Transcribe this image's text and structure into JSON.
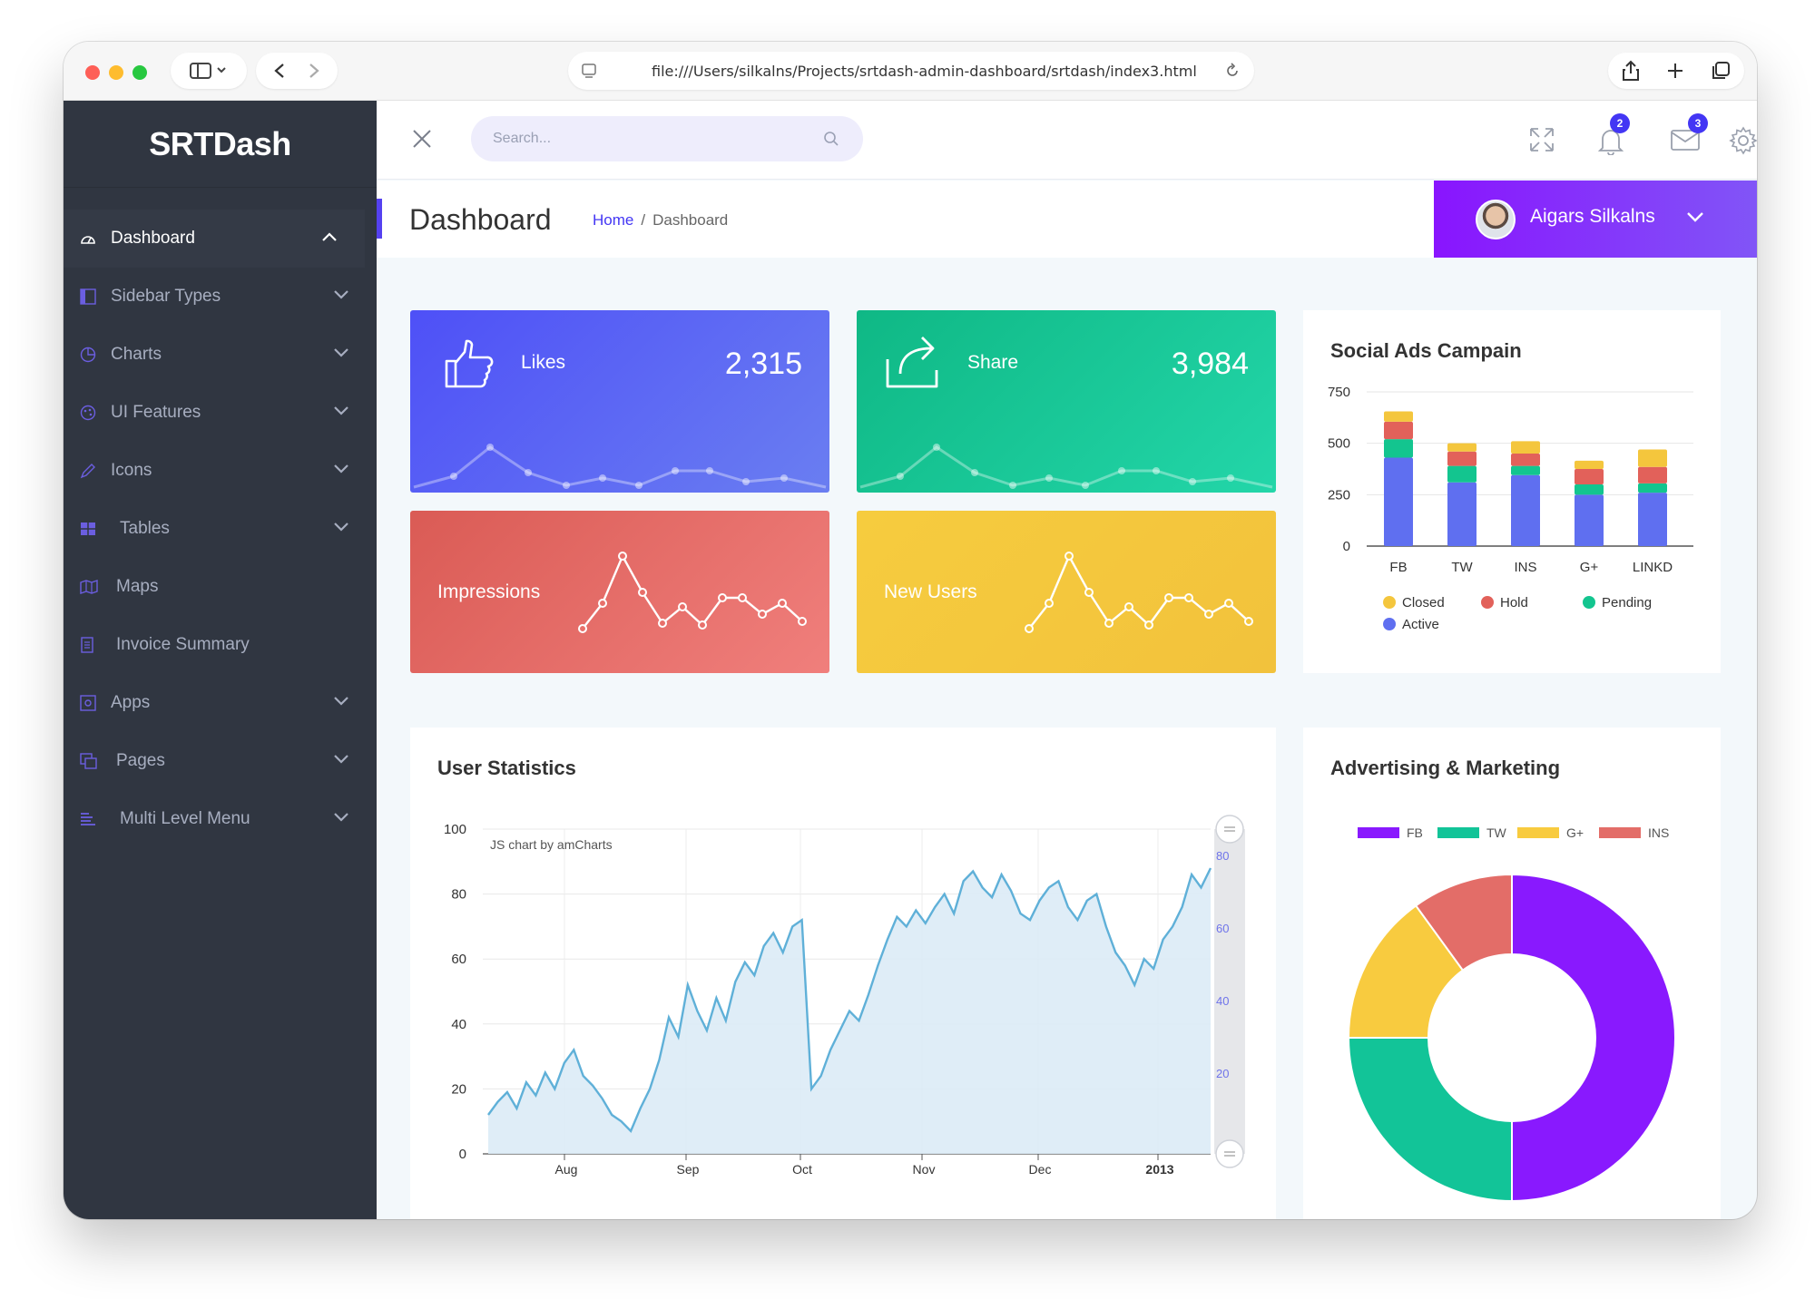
{
  "browser": {
    "url": "file:///Users/silkalns/Projects/srtdash-admin-dashboard/srtdash/index3.html"
  },
  "brand": "SRTDash",
  "sidebar": {
    "items": [
      {
        "label": "Dashboard",
        "icon": "dashboard-icon",
        "expandable": true,
        "active": true
      },
      {
        "label": "Sidebar Types",
        "icon": "layout-icon",
        "expandable": true
      },
      {
        "label": "Charts",
        "icon": "pie-chart-icon",
        "expandable": true
      },
      {
        "label": "UI Features",
        "icon": "palette-icon",
        "expandable": true
      },
      {
        "label": "Icons",
        "icon": "pencil-icon",
        "expandable": true
      },
      {
        "label": "Tables",
        "icon": "table-icon",
        "expandable": true
      },
      {
        "label": "Maps",
        "icon": "map-icon",
        "expandable": false
      },
      {
        "label": "Invoice Summary",
        "icon": "receipt-icon",
        "expandable": false
      },
      {
        "label": "Apps",
        "icon": "app-icon",
        "expandable": true
      },
      {
        "label": "Pages",
        "icon": "copy-icon",
        "expandable": true
      },
      {
        "label": "Multi Level Menu",
        "icon": "list-icon",
        "expandable": true
      }
    ]
  },
  "header": {
    "search_placeholder": "Search...",
    "notifications_count": "2",
    "messages_count": "3"
  },
  "page": {
    "title": "Dashboard",
    "breadcrumb_home": "Home",
    "breadcrumb_current": "Dashboard",
    "user_name": "Aigars Silkalns"
  },
  "stats": {
    "likes": {
      "label": "Likes",
      "value": "2,315"
    },
    "share": {
      "label": "Share",
      "value": "3,984"
    },
    "impressions": {
      "label": "Impressions"
    },
    "new_users": {
      "label": "New Users"
    }
  },
  "colors": {
    "sidebar": "#303641",
    "accent": "#4336f4",
    "likes": "#4b5cf4",
    "share": "#13c58f",
    "impressions": "#e2615a",
    "new_users": "#f4c63d"
  },
  "chart_data": [
    {
      "type": "bar",
      "stacked": true,
      "title": "Social Ads Campain",
      "categories": [
        "FB",
        "TW",
        "INS",
        "G+",
        "LINKD"
      ],
      "ylim": [
        0,
        750
      ],
      "yticks": [
        0,
        250,
        500,
        750
      ],
      "series": [
        {
          "name": "Active",
          "color": "#5f6ff0",
          "values": [
            430,
            310,
            345,
            250,
            260
          ]
        },
        {
          "name": "Pending",
          "color": "#13c58f",
          "values": [
            90,
            80,
            45,
            50,
            45
          ]
        },
        {
          "name": "Hold",
          "color": "#e2615a",
          "values": [
            85,
            70,
            60,
            75,
            80
          ]
        },
        {
          "name": "Closed",
          "color": "#f4c63d",
          "values": [
            50,
            40,
            60,
            40,
            85
          ]
        }
      ],
      "legend": [
        "Closed",
        "Hold",
        "Pending",
        "Active"
      ]
    },
    {
      "type": "area",
      "title": "User Statistics",
      "credit": "JS chart by amCharts",
      "ylim": [
        0,
        100
      ],
      "yticks": [
        0,
        20,
        40,
        60,
        80,
        100
      ],
      "xtick_labels": [
        "Aug",
        "Sep",
        "Oct",
        "Nov",
        "Dec",
        "2013"
      ],
      "scrollbar_ticks": [
        "80",
        "60",
        "40",
        "20"
      ],
      "values": [
        12,
        16,
        19,
        14,
        22,
        18,
        25,
        20,
        28,
        32,
        24,
        21,
        17,
        12,
        10,
        7,
        14,
        20,
        29,
        42,
        36,
        52,
        44,
        38,
        48,
        41,
        53,
        59,
        55,
        64,
        68,
        62,
        70,
        72,
        20,
        24,
        32,
        38,
        44,
        41,
        49,
        58,
        66,
        73,
        70,
        75,
        71,
        76,
        80,
        74,
        84,
        87,
        82,
        79,
        86,
        81,
        74,
        72,
        78,
        82,
        84,
        76,
        72,
        78,
        80,
        70,
        62,
        58,
        52,
        60,
        57,
        66,
        70,
        76,
        86,
        82,
        88
      ],
      "color": "#5fb0d8"
    },
    {
      "type": "pie",
      "donut": true,
      "title": "Advertising & Marketing",
      "legend": [
        "FB",
        "TW",
        "G+",
        "INS"
      ],
      "slices": [
        {
          "name": "FB",
          "value": 50,
          "color": "#8919fe"
        },
        {
          "name": "TW",
          "value": 25,
          "color": "#12c498"
        },
        {
          "name": "G+",
          "value": 15,
          "color": "#f8cb3f"
        },
        {
          "name": "INS",
          "value": 10,
          "color": "#e36d68"
        }
      ]
    }
  ]
}
